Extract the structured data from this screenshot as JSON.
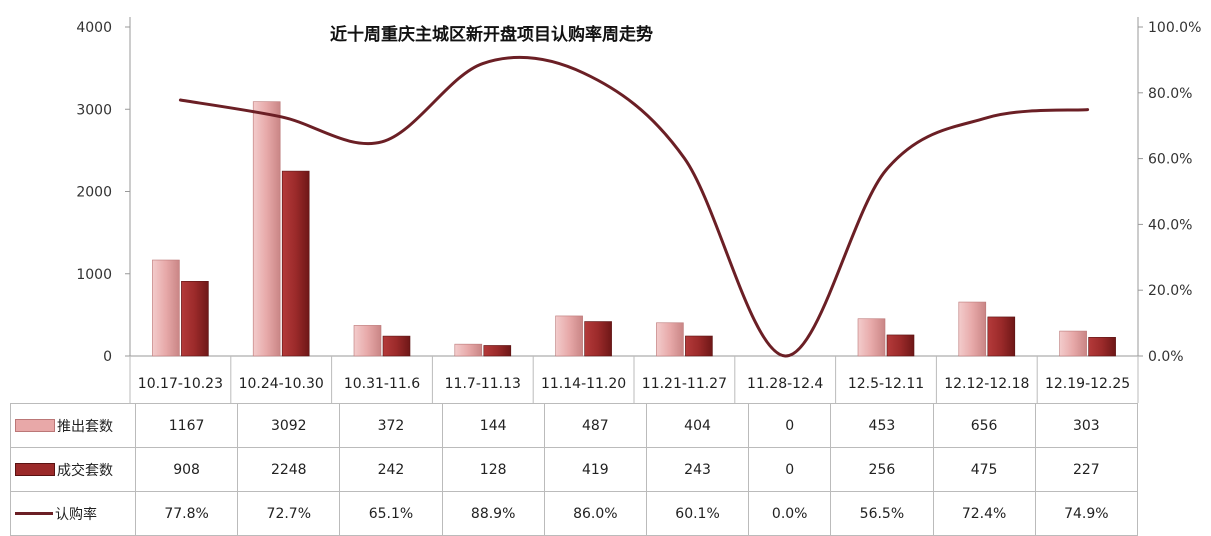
{
  "chart_data": {
    "type": "bar",
    "title": "近十周重庆主城区新开盘项目认购率周走势",
    "categories": [
      "10.17-10.23",
      "10.24-10.30",
      "10.31-11.6",
      "11.7-11.13",
      "11.14-11.20",
      "11.21-11.27",
      "11.28-12.4",
      "12.5-12.11",
      "12.12-12.18",
      "12.19-12.25"
    ],
    "series": [
      {
        "name": "推出套数",
        "type": "bar",
        "axis": "left",
        "color": "#e8a8a8",
        "values": [
          1167,
          3092,
          372,
          144,
          487,
          404,
          0,
          453,
          656,
          303
        ]
      },
      {
        "name": "成交套数",
        "type": "bar",
        "axis": "left",
        "color": "#9b2a2a",
        "values": [
          908,
          2248,
          242,
          128,
          419,
          243,
          0,
          256,
          475,
          227
        ]
      },
      {
        "name": "认购率",
        "type": "line",
        "axis": "right",
        "color": "#6b1f25",
        "values": [
          77.8,
          72.7,
          65.1,
          88.9,
          86.0,
          60.1,
          0.0,
          56.5,
          72.4,
          74.9
        ]
      }
    ],
    "left_axis": {
      "min": 0,
      "max": 4000,
      "ticks": [
        0,
        1000,
        2000,
        3000,
        4000
      ]
    },
    "right_axis": {
      "min": 0,
      "max": 100,
      "ticks": [
        "0.0%",
        "20.0%",
        "40.0%",
        "60.0%",
        "80.0%",
        "100.0%"
      ]
    },
    "line_labels": [
      "77.8%",
      "72.7%",
      "65.1%",
      "88.9%",
      "86.0%",
      "60.1%",
      "0.0%",
      "56.5%",
      "72.4%",
      "74.9%"
    ],
    "grid": false,
    "legend": "data-table"
  }
}
